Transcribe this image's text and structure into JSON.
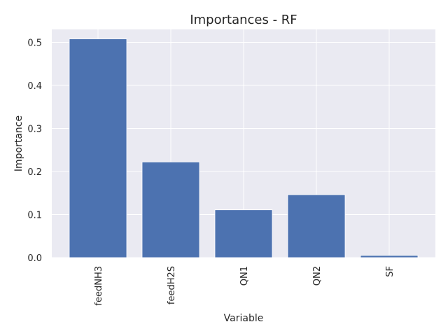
{
  "chart_data": {
    "type": "bar",
    "title": "Importances - RF",
    "xlabel": "Variable",
    "ylabel": "Importance",
    "categories": [
      "feedNH3",
      "feedH2S",
      "QN1",
      "QN2",
      "SF"
    ],
    "values": [
      0.508,
      0.222,
      0.111,
      0.146,
      0.005
    ],
    "ylim": [
      0,
      0.53
    ],
    "yticks": [
      "0.0",
      "0.1",
      "0.2",
      "0.3",
      "0.4",
      "0.5"
    ],
    "grid": true,
    "legend": "none",
    "colors": {
      "bar": "#4c72b0",
      "plot_background": "#eaeaf2",
      "grid": "#ffffff",
      "text": "#262626"
    }
  }
}
